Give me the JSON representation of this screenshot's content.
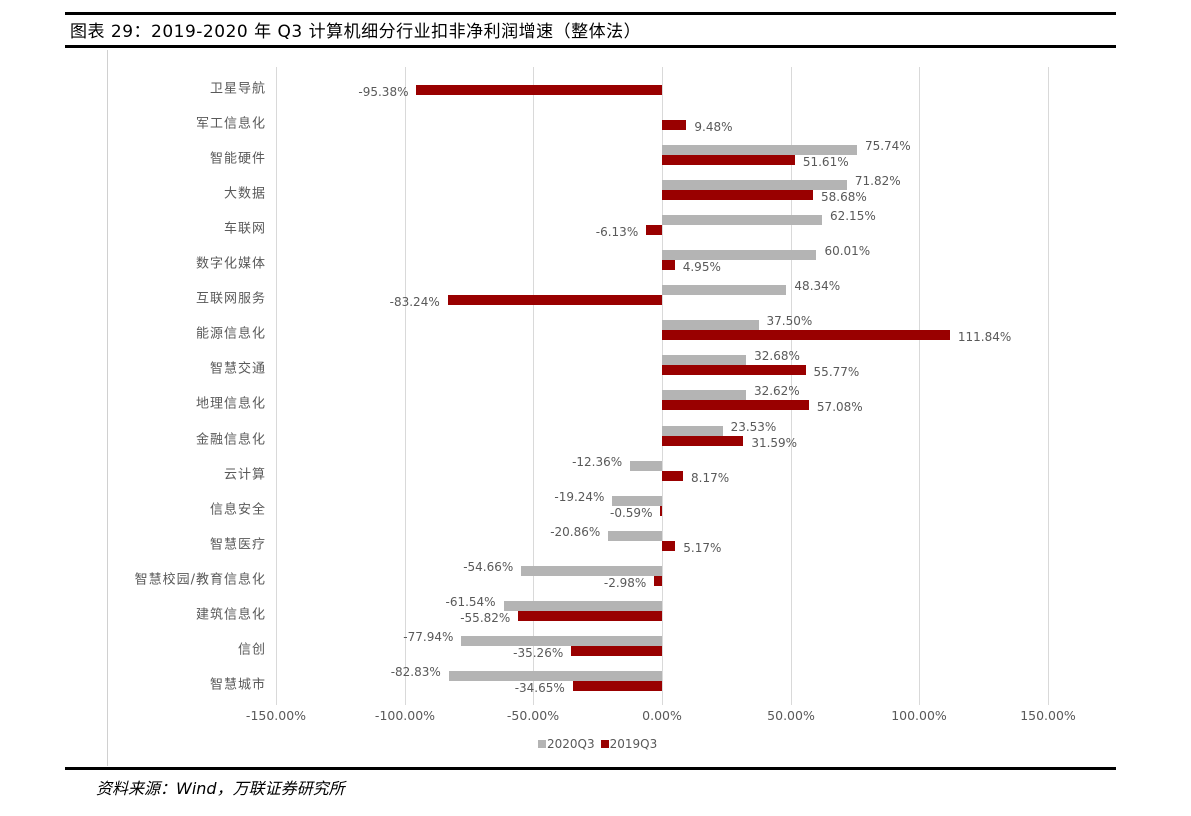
{
  "figure": {
    "title": "图表 29：2019-2020 年 Q3 计算机细分行业扣非净利润增速（整体法）",
    "source": "资料来源：Wind，万联证券研究所"
  },
  "colors": {
    "series_2020Q3": "#b4b4b4",
    "series_2019Q3": "#990000",
    "gridline": "#d9d9d9",
    "label_text": "#595959"
  },
  "chart_data": {
    "type": "bar",
    "orientation": "horizontal",
    "title": "2019-2020 年 Q3 计算机细分行业扣非净利润增速（整体法）",
    "xlabel": "",
    "ylabel": "",
    "xlim": [
      -150,
      150
    ],
    "x_ticks": [
      "-150.00%",
      "-100.00%",
      "-50.00%",
      "0.00%",
      "50.00%",
      "100.00%",
      "150.00%"
    ],
    "x_tick_values": [
      -150,
      -100,
      -50,
      0,
      50,
      100,
      150
    ],
    "grid": true,
    "legend_position": "bottom",
    "categories": [
      "卫星导航",
      "军工信息化",
      "智能硬件",
      "大数据",
      "车联网",
      "数字化媒体",
      "互联网服务",
      "能源信息化",
      "智慧交通",
      "地理信息化",
      "金融信息化",
      "云计算",
      "信息安全",
      "智慧医疗",
      "智慧校园/教育信息化",
      "建筑信息化",
      "信创",
      "智慧城市"
    ],
    "series": [
      {
        "name": "2020Q3",
        "values": [
          null,
          null,
          75.74,
          71.82,
          62.15,
          60.01,
          48.34,
          37.5,
          32.68,
          32.62,
          23.53,
          -12.36,
          -19.24,
          -20.86,
          -54.66,
          -61.54,
          -77.94,
          -82.83
        ],
        "labels": [
          "",
          "",
          "75.74%",
          "71.82%",
          "62.15%",
          "60.01%",
          "48.34%",
          "37.50%",
          "32.68%",
          "32.62%",
          "23.53%",
          "-12.36%",
          "-19.24%",
          "-20.86%",
          "-54.66%",
          "-61.54%",
          "-77.94%",
          "-82.83%"
        ]
      },
      {
        "name": "2019Q3",
        "values": [
          -95.38,
          9.48,
          51.61,
          58.68,
          -6.13,
          4.95,
          -83.24,
          111.84,
          55.77,
          57.08,
          31.59,
          8.17,
          -0.59,
          5.17,
          -2.98,
          -55.82,
          -35.26,
          -34.65
        ],
        "labels": [
          "-95.38%",
          "9.48%",
          "51.61%",
          "58.68%",
          "-6.13%",
          "4.95%",
          "-83.24%",
          "111.84%",
          "55.77%",
          "57.08%",
          "31.59%",
          "8.17%",
          "-0.59%",
          "5.17%",
          "-2.98%",
          "-55.82%",
          "-35.26%",
          "-34.65%"
        ]
      }
    ]
  },
  "legend": {
    "items": [
      {
        "label": "2020Q3"
      },
      {
        "label": "2019Q3"
      }
    ]
  }
}
